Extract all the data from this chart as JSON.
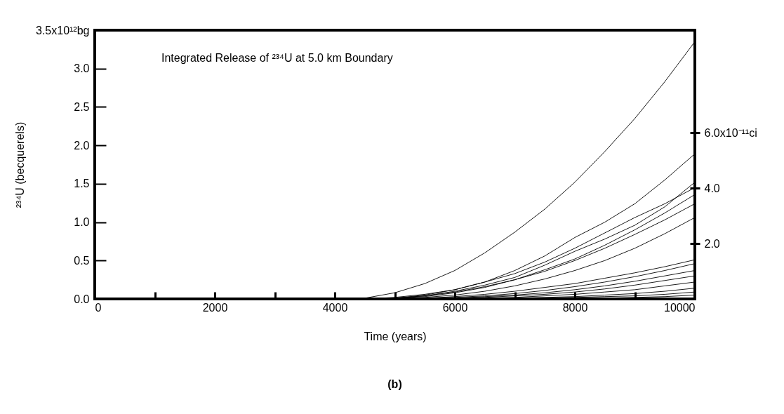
{
  "chart_data": {
    "type": "line",
    "title": "Integrated Release of ²³⁴U at 5.0 km Boundary",
    "xlabel": "Time (years)",
    "ylabel": "²³⁴U (becquerels)",
    "annotations": [
      "(b)"
    ],
    "x": [
      0,
      4000,
      4500,
      5000,
      5500,
      6000,
      6500,
      7000,
      7500,
      8000,
      8500,
      9000,
      9500,
      10000
    ],
    "xlim": [
      0,
      10000
    ],
    "xticks": [
      0,
      {
        "value": 1000,
        "label": null
      },
      2000,
      {
        "value": 3000,
        "label": null
      },
      4000,
      {
        "value": 5000,
        "label": null
      },
      6000,
      {
        "value": 7000,
        "label": null
      },
      8000,
      {
        "value": 9000,
        "label": null
      },
      10000
    ],
    "ylim": [
      0,
      3.5
    ],
    "yticks": [
      {
        "value": 0,
        "label": "0.0"
      },
      0.5,
      {
        "value": 1,
        "label": "1.0"
      },
      1.5,
      {
        "value": 2,
        "label": "2.0"
      },
      2.5,
      {
        "value": 3,
        "label": "3.0"
      },
      {
        "value": 3.5,
        "label": "3.5x10¹²bg"
      }
    ],
    "y2lim": [
      0,
      9.7
    ],
    "y2ticks": [
      {
        "value": 2,
        "label": "2.0"
      },
      {
        "value": 4,
        "label": "4.0"
      },
      {
        "value": 6,
        "label": "6.0x10⁻¹¹ci"
      }
    ],
    "grid": false,
    "legend": false,
    "line_style": "solid",
    "marker": "none",
    "series": [
      {
        "color": "#000000",
        "values": [
          0,
          0,
          0.01,
          0.08,
          0.2,
          0.37,
          0.6,
          0.87,
          1.17,
          1.52,
          1.92,
          2.35,
          2.83,
          3.35
        ]
      },
      {
        "color": "#000000",
        "values": [
          0,
          0,
          0,
          0.02,
          0.06,
          0.12,
          0.22,
          0.37,
          0.56,
          0.8,
          1.0,
          1.24,
          1.55,
          1.89
        ]
      },
      {
        "color": "#000000",
        "values": [
          0,
          0,
          0,
          0.01,
          0.04,
          0.1,
          0.18,
          0.28,
          0.44,
          0.62,
          0.78,
          0.96,
          1.2,
          1.52
        ]
      },
      {
        "color": "#000000",
        "values": [
          0,
          0,
          0,
          0.01,
          0.05,
          0.12,
          0.22,
          0.33,
          0.48,
          0.66,
          0.86,
          1.06,
          1.24,
          1.45
        ]
      },
      {
        "color": "#000000",
        "values": [
          0,
          0,
          0,
          0.01,
          0.03,
          0.08,
          0.15,
          0.25,
          0.38,
          0.52,
          0.7,
          0.9,
          1.12,
          1.36
        ]
      },
      {
        "color": "#000000",
        "values": [
          0,
          0,
          0,
          0.01,
          0.04,
          0.09,
          0.16,
          0.25,
          0.36,
          0.5,
          0.66,
          0.84,
          1.03,
          1.24
        ]
      },
      {
        "color": "#000000",
        "values": [
          0,
          0,
          0,
          0,
          0.02,
          0.05,
          0.1,
          0.17,
          0.26,
          0.37,
          0.5,
          0.66,
          0.85,
          1.06
        ]
      },
      {
        "color": "#000000",
        "values": [
          0,
          0,
          0,
          0,
          0.01,
          0.03,
          0.06,
          0.1,
          0.15,
          0.2,
          0.27,
          0.34,
          0.42,
          0.51
        ]
      },
      {
        "color": "#000000",
        "values": [
          0,
          0,
          0,
          0,
          0.01,
          0.02,
          0.04,
          0.07,
          0.11,
          0.16,
          0.22,
          0.29,
          0.37,
          0.46
        ]
      },
      {
        "color": "#000000",
        "values": [
          0,
          0,
          0,
          0,
          0,
          0.01,
          0.03,
          0.05,
          0.08,
          0.12,
          0.17,
          0.23,
          0.3,
          0.37
        ]
      },
      {
        "color": "#000000",
        "values": [
          0,
          0,
          0,
          0,
          0,
          0.01,
          0.02,
          0.04,
          0.06,
          0.09,
          0.13,
          0.18,
          0.24,
          0.3
        ]
      },
      {
        "color": "#000000",
        "values": [
          0,
          0,
          0,
          0,
          0,
          0,
          0.01,
          0.02,
          0.04,
          0.06,
          0.09,
          0.12,
          0.17,
          0.22
        ]
      },
      {
        "color": "#000000",
        "values": [
          0,
          0,
          0,
          0,
          0,
          0,
          0,
          0.01,
          0.02,
          0.03,
          0.05,
          0.07,
          0.1,
          0.14
        ]
      },
      {
        "color": "#000000",
        "values": [
          0,
          0,
          0,
          0,
          0,
          0,
          0,
          0,
          0.01,
          0.02,
          0.03,
          0.04,
          0.06,
          0.09
        ]
      },
      {
        "color": "#000000",
        "values": [
          0,
          0,
          0,
          0,
          0,
          0,
          0,
          0,
          0,
          0.01,
          0.01,
          0.02,
          0.03,
          0.05
        ]
      }
    ]
  }
}
